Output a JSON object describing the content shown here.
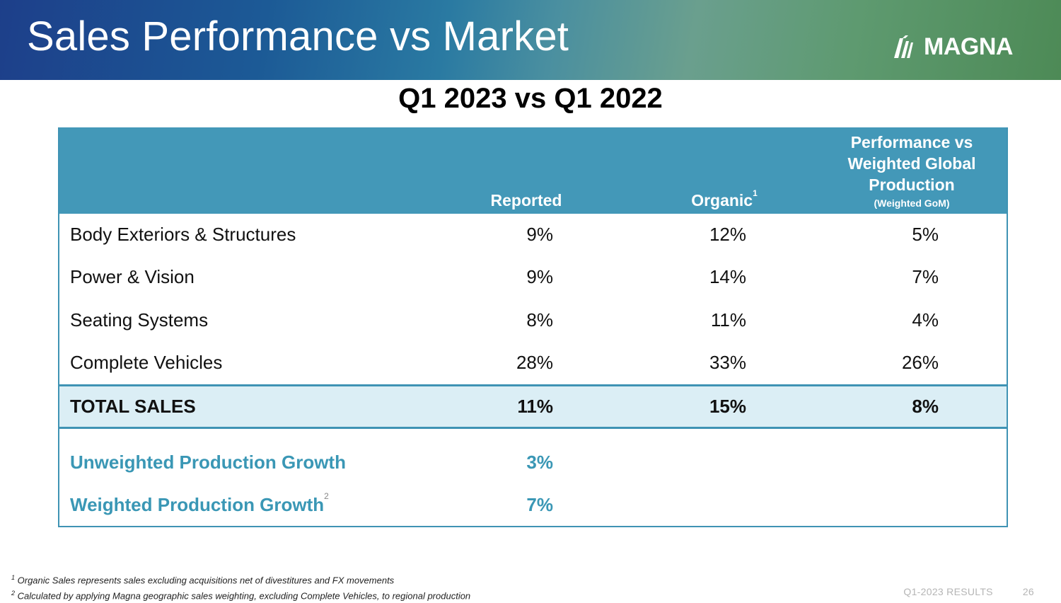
{
  "header": {
    "title": "Sales Performance vs Market",
    "logo_text": "MAGNA"
  },
  "subtitle": "Q1 2023 vs Q1 2022",
  "table": {
    "columns": {
      "reported": "Reported",
      "organic": "Organic",
      "organic_note": "1",
      "perf_line1": "Performance vs",
      "perf_line2": "Weighted Global",
      "perf_line3": "Production",
      "perf_note": "(Weighted GoM)"
    },
    "rows": [
      {
        "label": "Body Exteriors & Structures",
        "reported": "9%",
        "organic": "12%",
        "performance": "5%"
      },
      {
        "label": "Power & Vision",
        "reported": "9%",
        "organic": "14%",
        "performance": "7%"
      },
      {
        "label": "Seating Systems",
        "reported": "8%",
        "organic": "11%",
        "performance": "4%"
      },
      {
        "label": "Complete Vehicles",
        "reported": "28%",
        "organic": "33%",
        "performance": "26%"
      }
    ],
    "total": {
      "label": "TOTAL SALES",
      "reported": "11%",
      "organic": "15%",
      "performance": "8%"
    },
    "growth": [
      {
        "label": "Unweighted Production Growth",
        "note": "",
        "reported": "3%"
      },
      {
        "label": "Weighted Production Growth",
        "note": "2",
        "reported": "7%"
      }
    ]
  },
  "footnotes": {
    "n1_mark": "1",
    "n1": "Organic Sales represents sales excluding acquisitions net of divestitures and FX movements",
    "n2_mark": "2",
    "n2": "Calculated by applying Magna geographic sales weighting, excluding Complete Vehicles, to regional production"
  },
  "footer": {
    "label": "Q1-2023 RESULTS",
    "page": "26"
  }
}
